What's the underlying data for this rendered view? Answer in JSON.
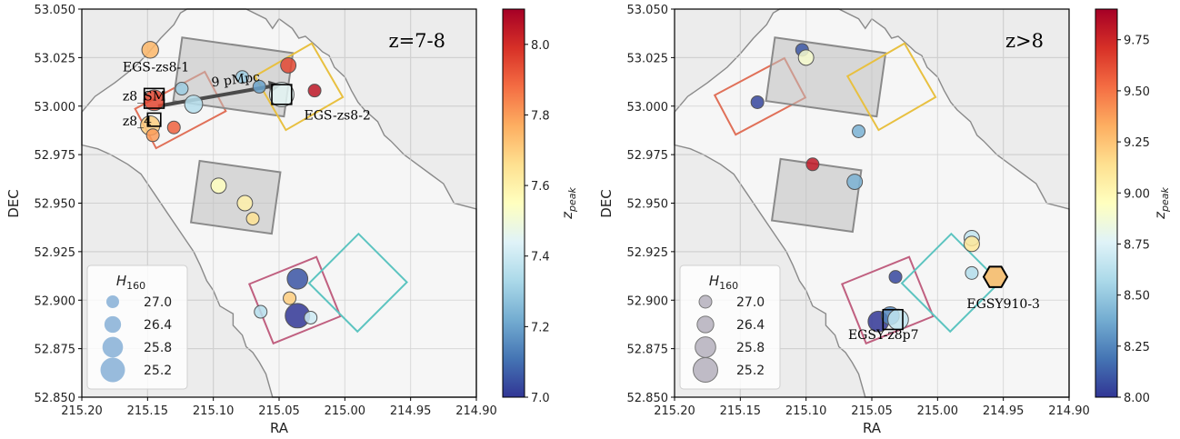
{
  "chart_data": [
    {
      "type": "scatter",
      "title": "z=7-8",
      "xlabel": "RA",
      "ylabel": "DEC",
      "xlim": [
        215.2,
        214.9
      ],
      "ylim": [
        52.85,
        53.05
      ],
      "x_ticks": [
        "215.20",
        "215.15",
        "215.10",
        "215.05",
        "215.00",
        "214.95",
        "214.90"
      ],
      "y_ticks": [
        "52.850",
        "52.875",
        "52.900",
        "52.925",
        "52.950",
        "52.975",
        "53.000",
        "53.025",
        "53.050"
      ],
      "grid": true,
      "colorbar": {
        "label": "z_peak",
        "label_main": "z",
        "label_sub": "peak",
        "range": [
          7.0,
          8.1
        ],
        "ticks": [
          "7.0",
          "7.2",
          "7.4",
          "7.6",
          "7.8",
          "8.0"
        ],
        "tick_values": [
          7.0,
          7.2,
          7.4,
          7.6,
          7.8,
          8.0
        ]
      },
      "legend": {
        "title": "H",
        "title_sub": "160",
        "placement": "lower-left",
        "marker_color": "#8db4d8",
        "entries": [
          "27.0",
          "26.4",
          "25.8",
          "25.2"
        ]
      },
      "fields": [
        {
          "name": "red",
          "color": "#e07058",
          "ra": 215.125,
          "dec": 52.998,
          "w": 0.06,
          "h": 0.023,
          "angle": -28
        },
        {
          "name": "gray-top",
          "color": "#8a8a8a",
          "ra": 215.085,
          "dec": 53.015,
          "w": 0.085,
          "h": 0.033,
          "angle": 8
        },
        {
          "name": "yellow",
          "color": "#e8c040",
          "ra": 215.035,
          "dec": 53.01,
          "w": 0.05,
          "h": 0.032,
          "angle": -30
        },
        {
          "name": "gray-mid",
          "color": "#8a8a8a",
          "ra": 215.083,
          "dec": 52.953,
          "w": 0.062,
          "h": 0.032,
          "angle": 8
        },
        {
          "name": "pink",
          "color": "#c06080",
          "ra": 215.038,
          "dec": 52.9,
          "w": 0.055,
          "h": 0.033,
          "angle": -22
        },
        {
          "name": "cyan",
          "color": "#5cc4c0",
          "ra": 214.99,
          "dec": 52.909,
          "w": 0.052,
          "h": 0.036,
          "angle": 45
        }
      ],
      "points": [
        {
          "ra": 215.148,
          "dec": 53.029,
          "z": 7.75,
          "mag": 26.4
        },
        {
          "ra": 215.124,
          "dec": 53.009,
          "z": 7.3,
          "mag": 27.0
        },
        {
          "ra": 215.115,
          "dec": 53.001,
          "z": 7.35,
          "mag": 26.2
        },
        {
          "ra": 215.078,
          "dec": 53.015,
          "z": 7.3,
          "mag": 27.0
        },
        {
          "ra": 215.065,
          "dec": 53.01,
          "z": 7.2,
          "mag": 27.0
        },
        {
          "ra": 215.043,
          "dec": 53.021,
          "z": 7.95,
          "mag": 26.6
        },
        {
          "ra": 215.023,
          "dec": 53.008,
          "z": 8.05,
          "mag": 27.0
        },
        {
          "ra": 215.048,
          "dec": 53.006,
          "z": 7.45,
          "mag": 25.2
        },
        {
          "ra": 215.145,
          "dec": 53.003,
          "z": 7.95,
          "mag": 25.8
        },
        {
          "ra": 215.148,
          "dec": 52.99,
          "z": 7.7,
          "mag": 26.0
        },
        {
          "ra": 215.13,
          "dec": 52.989,
          "z": 7.9,
          "mag": 27.0
        },
        {
          "ra": 215.146,
          "dec": 52.985,
          "z": 7.8,
          "mag": 27.0
        },
        {
          "ra": 215.096,
          "dec": 52.959,
          "z": 7.55,
          "mag": 26.6
        },
        {
          "ra": 215.076,
          "dec": 52.95,
          "z": 7.6,
          "mag": 26.6
        },
        {
          "ra": 215.07,
          "dec": 52.942,
          "z": 7.65,
          "mag": 27.0
        },
        {
          "ra": 215.036,
          "dec": 52.911,
          "z": 7.05,
          "mag": 25.8
        },
        {
          "ra": 215.042,
          "dec": 52.901,
          "z": 7.7,
          "mag": 27.0
        },
        {
          "ra": 215.036,
          "dec": 52.892,
          "z": 7.0,
          "mag": 25.2
        },
        {
          "ra": 215.026,
          "dec": 52.891,
          "z": 7.4,
          "mag": 27.0
        },
        {
          "ra": 215.064,
          "dec": 52.894,
          "z": 7.35,
          "mag": 27.0
        }
      ],
      "boxes": [
        {
          "ra": 215.145,
          "dec": 53.004,
          "size": 0.015
        },
        {
          "ra": 215.145,
          "dec": 52.993,
          "size": 0.01
        },
        {
          "ra": 215.048,
          "dec": 53.006,
          "size": 0.015
        }
      ],
      "arrow": {
        "from_ra": 215.142,
        "from_dec": 53.0,
        "to_ra": 215.048,
        "to_dec": 53.011
      },
      "labels": [
        {
          "text": "EGS-zs8-1",
          "ra": 215.169,
          "dec": 53.018
        },
        {
          "text": "z8_SM",
          "ra": 215.169,
          "dec": 53.003
        },
        {
          "text": "z8_4",
          "ra": 215.169,
          "dec": 52.99
        },
        {
          "text": "9 pMpc",
          "ra": 215.101,
          "dec": 53.01
        },
        {
          "text": "EGS-zs8-2",
          "ra": 215.031,
          "dec": 52.993
        }
      ]
    },
    {
      "type": "scatter",
      "title": "z>8",
      "xlabel": "RA",
      "ylabel": "DEC",
      "xlim": [
        215.2,
        214.9
      ],
      "ylim": [
        52.85,
        53.05
      ],
      "x_ticks": [
        "215.20",
        "215.15",
        "215.10",
        "215.05",
        "215.00",
        "214.95",
        "214.90"
      ],
      "y_ticks": [
        "52.850",
        "52.875",
        "52.900",
        "52.925",
        "52.950",
        "52.975",
        "53.000",
        "53.025",
        "53.050"
      ],
      "grid": true,
      "colorbar": {
        "label": "z_peak",
        "label_main": "z",
        "label_sub": "peak",
        "range": [
          8.0,
          9.9
        ],
        "ticks": [
          "8.00",
          "8.25",
          "8.50",
          "8.75",
          "9.00",
          "9.25",
          "9.50",
          "9.75"
        ],
        "tick_values": [
          8.0,
          8.25,
          8.5,
          8.75,
          9.0,
          9.25,
          9.5,
          9.75
        ]
      },
      "legend": {
        "title": "H",
        "title_sub": "160",
        "placement": "lower-left",
        "marker_color": "#b8b4c0",
        "entries": [
          "27.0",
          "26.4",
          "25.8",
          "25.2"
        ]
      },
      "fields": [
        {
          "name": "red",
          "color": "#e07058",
          "ra": 215.135,
          "dec": 53.005,
          "w": 0.06,
          "h": 0.023,
          "angle": -28
        },
        {
          "name": "gray-top",
          "color": "#8a8a8a",
          "ra": 215.085,
          "dec": 53.015,
          "w": 0.085,
          "h": 0.033,
          "angle": 8
        },
        {
          "name": "yellow",
          "color": "#e8c040",
          "ra": 215.035,
          "dec": 53.01,
          "w": 0.05,
          "h": 0.032,
          "angle": -30
        },
        {
          "name": "gray-mid",
          "color": "#8a8a8a",
          "ra": 215.092,
          "dec": 52.954,
          "w": 0.062,
          "h": 0.032,
          "angle": 8
        },
        {
          "name": "pink",
          "color": "#c06080",
          "ra": 215.038,
          "dec": 52.9,
          "w": 0.055,
          "h": 0.033,
          "angle": -22
        },
        {
          "name": "cyan",
          "color": "#5cc4c0",
          "ra": 214.99,
          "dec": 52.909,
          "w": 0.052,
          "h": 0.036,
          "angle": 45
        }
      ],
      "points": [
        {
          "ra": 215.103,
          "dec": 53.029,
          "z": 8.1,
          "mag": 27.0
        },
        {
          "ra": 215.1,
          "dec": 53.025,
          "z": 8.9,
          "mag": 26.6
        },
        {
          "ra": 215.137,
          "dec": 53.002,
          "z": 8.05,
          "mag": 27.0
        },
        {
          "ra": 215.06,
          "dec": 52.987,
          "z": 8.4,
          "mag": 27.0
        },
        {
          "ra": 215.095,
          "dec": 52.97,
          "z": 9.8,
          "mag": 27.0
        },
        {
          "ra": 215.063,
          "dec": 52.961,
          "z": 8.4,
          "mag": 26.6
        },
        {
          "ra": 214.974,
          "dec": 52.932,
          "z": 8.65,
          "mag": 26.6
        },
        {
          "ra": 214.974,
          "dec": 52.929,
          "z": 9.1,
          "mag": 26.6
        },
        {
          "ra": 214.974,
          "dec": 52.914,
          "z": 8.6,
          "mag": 27.0
        },
        {
          "ra": 215.032,
          "dec": 52.912,
          "z": 8.05,
          "mag": 27.0
        },
        {
          "ra": 215.045,
          "dec": 52.889,
          "z": 8.0,
          "mag": 25.8
        },
        {
          "ra": 215.036,
          "dec": 52.892,
          "z": 8.25,
          "mag": 26.2
        },
        {
          "ra": 215.03,
          "dec": 52.89,
          "z": 8.65,
          "mag": 25.8
        }
      ],
      "boxes": [
        {
          "ra": 215.034,
          "dec": 52.89,
          "size": 0.015
        }
      ],
      "hexagon": {
        "ra": 214.956,
        "dec": 52.912,
        "color": "#f5c27a"
      },
      "labels": [
        {
          "text": "EGSY-z8p7",
          "ra": 215.068,
          "dec": 52.88
        },
        {
          "text": "EGSY910-3",
          "ra": 214.95,
          "dec": 52.896
        }
      ]
    }
  ]
}
